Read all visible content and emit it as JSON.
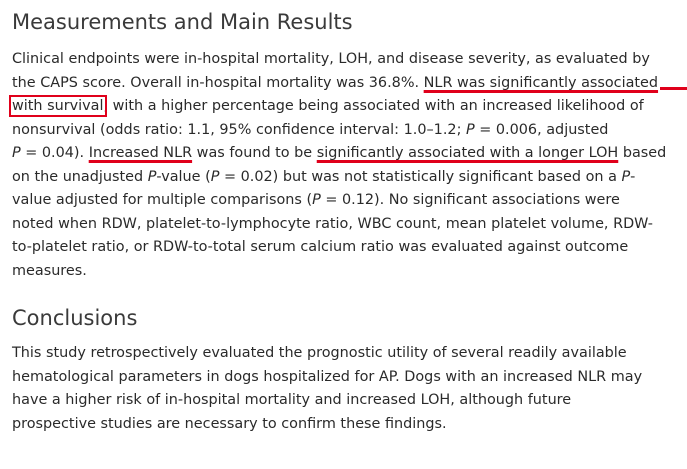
{
  "sections": [
    {
      "heading": "Measurements and Main Results",
      "lines": [
        [
          {
            "t": "Clinical endpoints were in-hospital mortality, LOH, and disease severity, as evaluated by"
          }
        ],
        [
          {
            "t": "the CAPS score. Overall in-hospital mortality was 36.8%. "
          },
          {
            "t": "NLR was significantly associated",
            "mark": "underline"
          }
        ],
        [
          {
            "t": "with survival",
            "mark": "box"
          },
          {
            "t": ", with a higher percentage being associated with an increased likelihood of"
          }
        ],
        [
          {
            "t": "nonsurvival (odds ratio: 1.1, 95% confidence interval: 1.0–1.2; "
          },
          {
            "t": "P",
            "it": true
          },
          {
            "t": " = 0.006, adjusted"
          }
        ],
        [
          {
            "t": "P",
            "it": true
          },
          {
            "t": " = 0.04). "
          },
          {
            "t": "Increased NLR",
            "mark": "underline"
          },
          {
            "t": " was found to be "
          },
          {
            "t": "significantly associated with a longer LOH",
            "mark": "underline"
          },
          {
            "t": " based"
          }
        ],
        [
          {
            "t": "on the unadjusted "
          },
          {
            "t": "P",
            "it": true
          },
          {
            "t": "-value ("
          },
          {
            "t": "P",
            "it": true
          },
          {
            "t": " = 0.02) but was not statistically significant based on a "
          },
          {
            "t": "P",
            "it": true
          },
          {
            "t": "-"
          }
        ],
        [
          {
            "t": "value adjusted for multiple comparisons ("
          },
          {
            "t": "P",
            "it": true
          },
          {
            "t": " = 0.12). No significant associations were"
          }
        ],
        [
          {
            "t": "noted when RDW, platelet-to-lymphocyte ratio, WBC count, mean platelet volume, RDW-"
          }
        ],
        [
          {
            "t": "to-platelet ratio, or RDW-to-total serum calcium ratio was evaluated against outcome"
          }
        ],
        [
          {
            "t": "measures."
          }
        ]
      ]
    },
    {
      "heading": "Conclusions",
      "lines": [
        [
          {
            "t": "This study retrospectively evaluated the prognostic utility of several readily available"
          }
        ],
        [
          {
            "t": "hematological parameters in dogs hospitalized for AP. Dogs with an increased NLR may"
          }
        ],
        [
          {
            "t": "have a higher risk of in-hospital mortality and increased LOH, although future"
          }
        ],
        [
          {
            "t": "prospective studies are necessary to confirm these findings."
          }
        ]
      ]
    }
  ],
  "annotation_color": "#e0001b"
}
